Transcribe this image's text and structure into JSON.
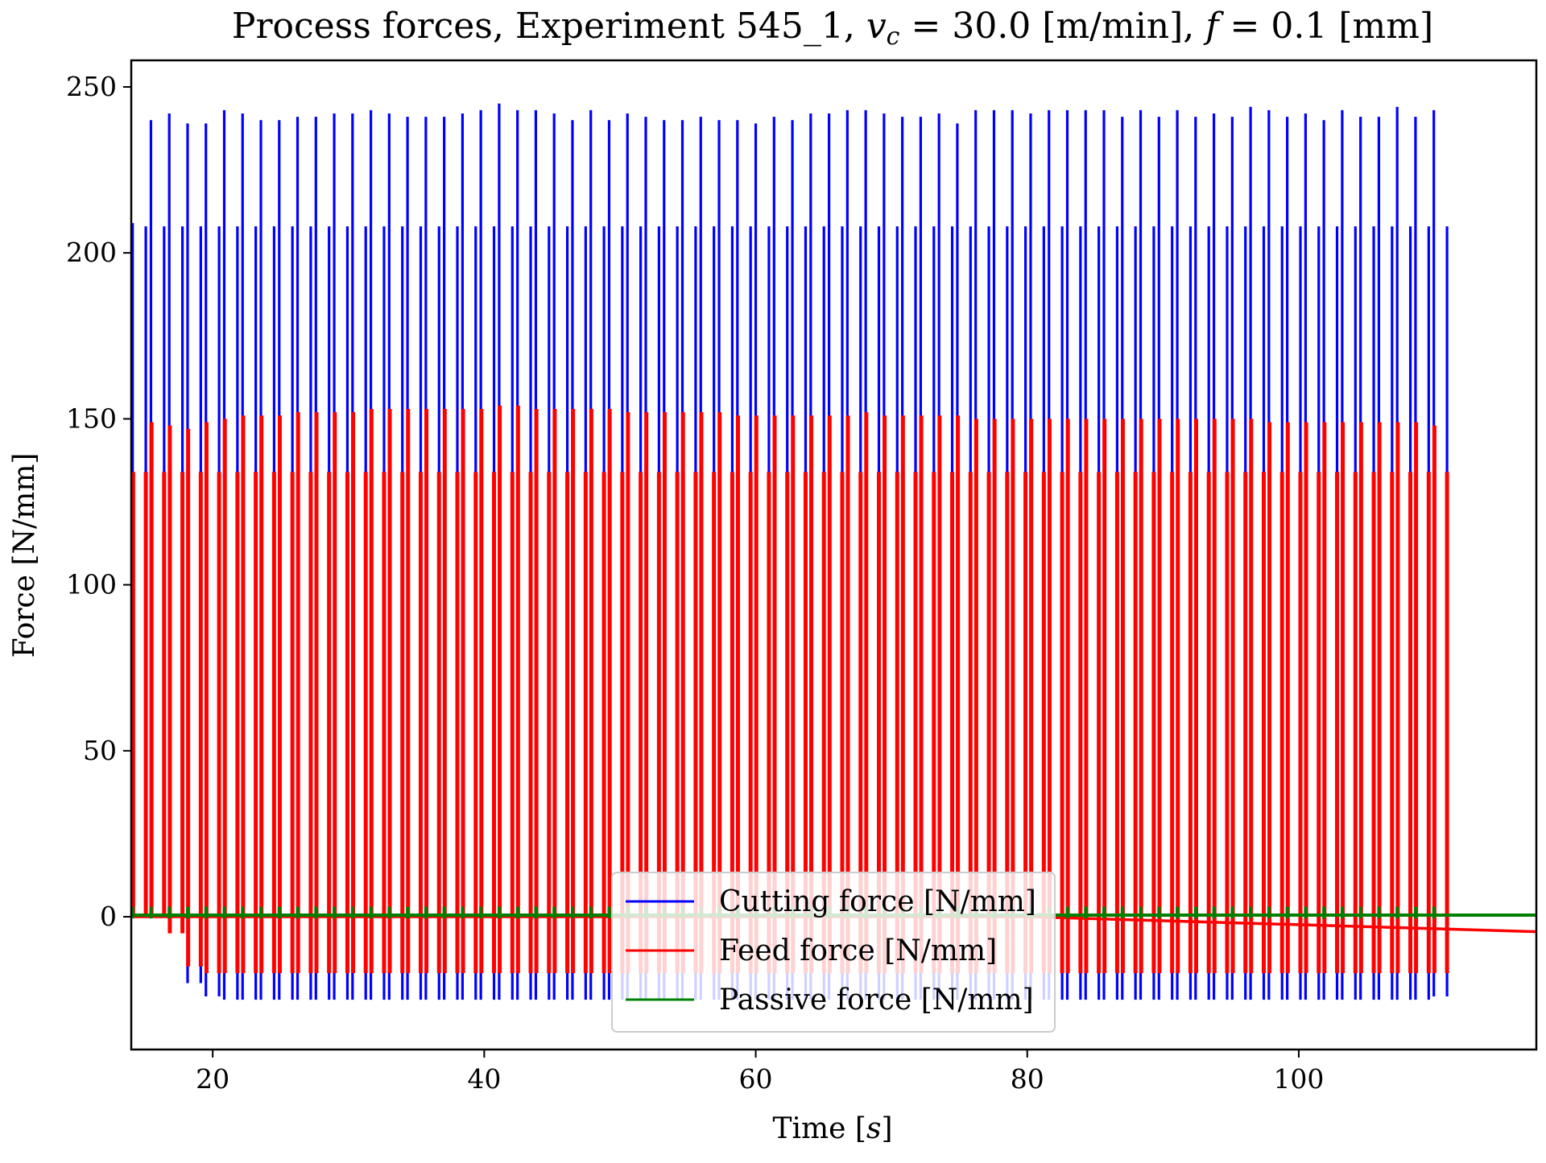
{
  "chart_data": {
    "type": "line",
    "title": "Process forces, Experiment 545_1, v_c = 30.0 [m/min], f = 0.1 [mm]",
    "title_parts": {
      "prefix": "Process forces, Experiment 545",
      "sub_mark": "_",
      "run": "1, ",
      "vc_symbol": "v",
      "vc_subscript": "c",
      "vc_value": " = 30.0 [m/min], ",
      "f_symbol": "f",
      "f_value": " = 0.1 [mm]"
    },
    "xlabel": "Time [s]",
    "xlabel_parts": {
      "prefix": "Time [",
      "var": "s",
      "suffix": "]"
    },
    "ylabel": "Force [N/mm]",
    "xlim": [
      14,
      117.5
    ],
    "ylim": [
      -40,
      258
    ],
    "x_ticks": [
      20,
      40,
      60,
      80,
      100
    ],
    "y_ticks": [
      0,
      50,
      100,
      150,
      200,
      250
    ],
    "grid": false,
    "legend_position": "bottom-center",
    "pulse_period_s": 1.35,
    "series": [
      {
        "name": "Cutting force [N/mm]",
        "color": "#0000ff",
        "plateau": 133,
        "peak_values": [
          209,
          240,
          242,
          239,
          239,
          243,
          242,
          240,
          240,
          241,
          241,
          242,
          242,
          243,
          242,
          241,
          241,
          241,
          242,
          243,
          245,
          243,
          243,
          242,
          240,
          243,
          240,
          242,
          241,
          240,
          240,
          241,
          240,
          240,
          239,
          241,
          240,
          242,
          242,
          243,
          243,
          242,
          241,
          241,
          242,
          239,
          243,
          243,
          243,
          242,
          243,
          243,
          243,
          243,
          241,
          243,
          241,
          243,
          241,
          242,
          241,
          244,
          243,
          241,
          242,
          240,
          243,
          241,
          241,
          244,
          241,
          243
        ],
        "trough_values": [
          0,
          0,
          0,
          -20,
          -24,
          -25,
          -25,
          -25,
          -25,
          -25,
          -25,
          -25,
          -25,
          -25,
          -25,
          -25,
          -25,
          -25,
          -25,
          -25,
          -25,
          -25,
          -25,
          -25,
          -25,
          -25,
          -25,
          -25,
          -25,
          -25,
          -25,
          -25,
          -25,
          -25,
          -25,
          -25,
          -25,
          -25,
          -25,
          -25,
          -25,
          -25,
          -25,
          -25,
          -25,
          -25,
          -25,
          -25,
          -25,
          -25,
          -25,
          -25,
          -25,
          -25,
          -25,
          -25,
          -25,
          -25,
          -25,
          -25,
          -25,
          -25,
          -25,
          -25,
          -25,
          -25,
          -25,
          -25,
          -25,
          -25,
          -25,
          -24
        ]
      },
      {
        "name": "Feed force [N/mm]",
        "color": "#ff0000",
        "plateau": 134,
        "peak_values": [
          134,
          149,
          148,
          147,
          149,
          150,
          151,
          151,
          151,
          152,
          152,
          152,
          152,
          153,
          153,
          153,
          153,
          153,
          153,
          153,
          154,
          154,
          153,
          153,
          153,
          153,
          153,
          152,
          152,
          152,
          152,
          152,
          152,
          151,
          151,
          151,
          151,
          151,
          151,
          151,
          152,
          151,
          151,
          151,
          151,
          151,
          150,
          150,
          150,
          150,
          150,
          150,
          150,
          150,
          150,
          150,
          150,
          150,
          150,
          150,
          150,
          150,
          149,
          149,
          149,
          149,
          149,
          149,
          149,
          149,
          149,
          148
        ],
        "baseline_start": 0,
        "baseline_end": -4.5,
        "drift_start_time": 80,
        "trough_values": [
          0,
          0,
          -5,
          -15,
          -17,
          -17,
          -17,
          -17,
          -17,
          -17,
          -17,
          -17,
          -17,
          -17,
          -17,
          -17,
          -17,
          -17,
          -17,
          -17,
          -17,
          -17,
          -17,
          -17,
          -17,
          -17,
          -17,
          -17,
          -17,
          -17,
          -17,
          -17,
          -17,
          -17,
          -17,
          -17,
          -17,
          -17,
          -17,
          -17,
          -17,
          -17,
          -17,
          -17,
          -17,
          -17,
          -17,
          -17,
          -17,
          -17,
          -17,
          -17,
          -17,
          -17,
          -17,
          -17,
          -17,
          -17,
          -17,
          -17,
          -17,
          -17,
          -17,
          -17,
          -17,
          -17,
          -17,
          -17,
          -17,
          -17,
          -17,
          -17
        ]
      },
      {
        "name": "Passive force [N/mm]",
        "color": "#008000",
        "baseline": 0.5,
        "spike_value": 3
      }
    ]
  }
}
